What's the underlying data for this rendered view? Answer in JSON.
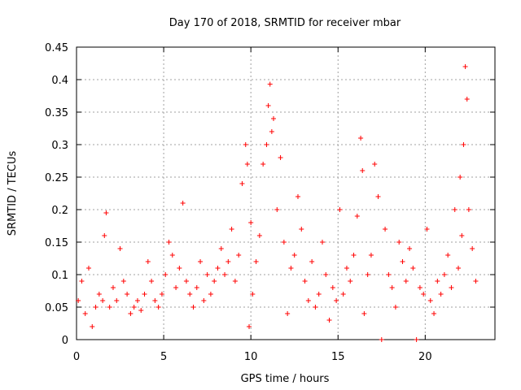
{
  "chart_data": {
    "type": "scatter",
    "title": "Day 170 of 2018, SRMTID for receiver mbar",
    "xlabel": "GPS time / hours",
    "ylabel": "SRMTID / TECUs",
    "xlim": [
      0,
      24.0
    ],
    "ylim": [
      0,
      0.45
    ],
    "xticks": [
      0,
      5,
      10,
      15,
      20
    ],
    "xtick_labels": [
      "0",
      "5",
      "10",
      "15",
      "20"
    ],
    "yticks": [
      0,
      0.05,
      0.1,
      0.15,
      0.2,
      0.25,
      0.3,
      0.35,
      0.4,
      0.45
    ],
    "ytick_labels": [
      "0",
      "0.05",
      "0.1",
      "0.15",
      "0.2",
      "0.25",
      "0.3",
      "0.35",
      "0.4",
      "0.45"
    ],
    "grid": true,
    "marker": "plus",
    "color": "#ff0000",
    "series": [
      {
        "name": "SRMTID",
        "points": [
          [
            0.1,
            0.06
          ],
          [
            0.3,
            0.09
          ],
          [
            0.5,
            0.04
          ],
          [
            0.7,
            0.11
          ],
          [
            0.9,
            0.02
          ],
          [
            1.1,
            0.05
          ],
          [
            1.3,
            0.07
          ],
          [
            1.5,
            0.06
          ],
          [
            1.6,
            0.16
          ],
          [
            1.7,
            0.195
          ],
          [
            1.9,
            0.05
          ],
          [
            2.1,
            0.08
          ],
          [
            2.3,
            0.06
          ],
          [
            2.5,
            0.14
          ],
          [
            2.7,
            0.09
          ],
          [
            2.9,
            0.07
          ],
          [
            3.1,
            0.04
          ],
          [
            3.3,
            0.05
          ],
          [
            3.5,
            0.06
          ],
          [
            3.7,
            0.045
          ],
          [
            3.9,
            0.07
          ],
          [
            4.1,
            0.12
          ],
          [
            4.3,
            0.09
          ],
          [
            4.5,
            0.06
          ],
          [
            4.7,
            0.05
          ],
          [
            4.9,
            0.07
          ],
          [
            5.1,
            0.1
          ],
          [
            5.3,
            0.15
          ],
          [
            5.5,
            0.13
          ],
          [
            5.7,
            0.08
          ],
          [
            5.9,
            0.11
          ],
          [
            6.1,
            0.21
          ],
          [
            6.3,
            0.09
          ],
          [
            6.5,
            0.07
          ],
          [
            6.7,
            0.05
          ],
          [
            6.9,
            0.08
          ],
          [
            7.1,
            0.12
          ],
          [
            7.3,
            0.06
          ],
          [
            7.5,
            0.1
          ],
          [
            7.7,
            0.07
          ],
          [
            7.9,
            0.09
          ],
          [
            8.1,
            0.11
          ],
          [
            8.3,
            0.14
          ],
          [
            8.5,
            0.1
          ],
          [
            8.7,
            0.12
          ],
          [
            8.9,
            0.17
          ],
          [
            9.1,
            0.09
          ],
          [
            9.3,
            0.13
          ],
          [
            9.5,
            0.24
          ],
          [
            9.7,
            0.3
          ],
          [
            9.8,
            0.27
          ],
          [
            9.9,
            0.02
          ],
          [
            10.0,
            0.18
          ],
          [
            10.1,
            0.07
          ],
          [
            10.3,
            0.12
          ],
          [
            10.5,
            0.16
          ],
          [
            10.7,
            0.27
          ],
          [
            10.9,
            0.3
          ],
          [
            11.0,
            0.36
          ],
          [
            11.1,
            0.393
          ],
          [
            11.2,
            0.32
          ],
          [
            11.3,
            0.34
          ],
          [
            11.5,
            0.2
          ],
          [
            11.7,
            0.28
          ],
          [
            11.9,
            0.15
          ],
          [
            12.1,
            0.04
          ],
          [
            12.3,
            0.11
          ],
          [
            12.5,
            0.13
          ],
          [
            12.7,
            0.22
          ],
          [
            12.9,
            0.17
          ],
          [
            13.1,
            0.09
          ],
          [
            13.3,
            0.06
          ],
          [
            13.5,
            0.12
          ],
          [
            13.7,
            0.05
          ],
          [
            13.9,
            0.07
          ],
          [
            14.1,
            0.15
          ],
          [
            14.3,
            0.1
          ],
          [
            14.5,
            0.03
          ],
          [
            14.7,
            0.08
          ],
          [
            14.9,
            0.06
          ],
          [
            15.1,
            0.2
          ],
          [
            15.3,
            0.07
          ],
          [
            15.5,
            0.11
          ],
          [
            15.7,
            0.09
          ],
          [
            15.9,
            0.13
          ],
          [
            16.1,
            0.19
          ],
          [
            16.3,
            0.31
          ],
          [
            16.4,
            0.26
          ],
          [
            16.5,
            0.04
          ],
          [
            16.7,
            0.1
          ],
          [
            16.9,
            0.13
          ],
          [
            17.1,
            0.27
          ],
          [
            17.3,
            0.22
          ],
          [
            17.5,
            0.0
          ],
          [
            17.7,
            0.17
          ],
          [
            17.9,
            0.1
          ],
          [
            18.1,
            0.08
          ],
          [
            18.3,
            0.05
          ],
          [
            18.5,
            0.15
          ],
          [
            18.7,
            0.12
          ],
          [
            18.9,
            0.09
          ],
          [
            19.1,
            0.14
          ],
          [
            19.3,
            0.11
          ],
          [
            19.5,
            0.0
          ],
          [
            19.7,
            0.08
          ],
          [
            19.9,
            0.07
          ],
          [
            20.1,
            0.17
          ],
          [
            20.3,
            0.06
          ],
          [
            20.5,
            0.04
          ],
          [
            20.7,
            0.09
          ],
          [
            20.9,
            0.07
          ],
          [
            21.1,
            0.1
          ],
          [
            21.3,
            0.13
          ],
          [
            21.5,
            0.08
          ],
          [
            21.7,
            0.2
          ],
          [
            21.9,
            0.11
          ],
          [
            22.0,
            0.25
          ],
          [
            22.1,
            0.16
          ],
          [
            22.2,
            0.3
          ],
          [
            22.3,
            0.42
          ],
          [
            22.4,
            0.37
          ],
          [
            22.5,
            0.2
          ],
          [
            22.7,
            0.14
          ],
          [
            22.9,
            0.09
          ]
        ]
      }
    ]
  }
}
